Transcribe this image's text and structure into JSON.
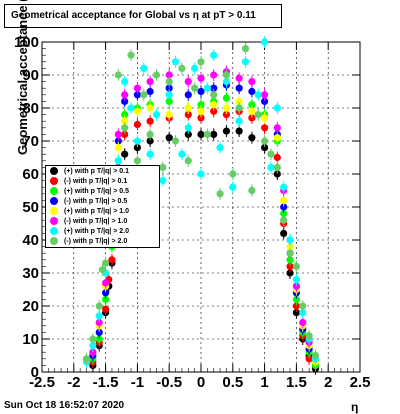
{
  "title": "Geometrical acceptance for Global vs  η at pT > 0.11",
  "timestamp": "Sun Oct 18 16:52:07 2020",
  "chart_data": {
    "type": "scatter",
    "xlabel": "η",
    "ylabel": "Geometrical acceptance (%)",
    "xlim": [
      -2.5,
      2.5
    ],
    "ylim": [
      0,
      100
    ],
    "x_ticks": [
      "-2.5",
      "-2",
      "-1.5",
      "-1",
      "-0.5",
      "0",
      "0.5",
      "1",
      "1.5",
      "2",
      "2.5"
    ],
    "y_ticks": [
      "0",
      "10",
      "20",
      "30",
      "40",
      "50",
      "60",
      "70",
      "80",
      "90",
      "100"
    ],
    "grid": true,
    "legend_position": "middle-left",
    "series": [
      {
        "name": "(+) with p T/|q| > 0.1",
        "color": "#000000",
        "points": [
          [
            -1.7,
            2
          ],
          [
            -1.6,
            8
          ],
          [
            -1.5,
            18
          ],
          [
            -1.45,
            26
          ],
          [
            -1.4,
            33
          ],
          [
            -1.35,
            45
          ],
          [
            -1.3,
            60
          ],
          [
            -1.2,
            66
          ],
          [
            -1.0,
            68
          ],
          [
            -0.8,
            70
          ],
          [
            -0.5,
            71
          ],
          [
            -0.2,
            72
          ],
          [
            0,
            72
          ],
          [
            0.2,
            72
          ],
          [
            0.4,
            73
          ],
          [
            0.6,
            73
          ],
          [
            0.8,
            71
          ],
          [
            1.0,
            68
          ],
          [
            1.2,
            60
          ],
          [
            1.3,
            42
          ],
          [
            1.4,
            30
          ],
          [
            1.5,
            18
          ],
          [
            1.6,
            10
          ],
          [
            1.7,
            5
          ],
          [
            1.8,
            1
          ]
        ]
      },
      {
        "name": "(-) with p T/|q| > 0.1",
        "color": "#ff0000",
        "points": [
          [
            -1.7,
            3
          ],
          [
            -1.6,
            9
          ],
          [
            -1.5,
            19
          ],
          [
            -1.45,
            28
          ],
          [
            -1.4,
            34
          ],
          [
            -1.35,
            50
          ],
          [
            -1.3,
            62
          ],
          [
            -1.2,
            72
          ],
          [
            -1.0,
            75
          ],
          [
            -0.8,
            76
          ],
          [
            -0.5,
            77
          ],
          [
            -0.2,
            78
          ],
          [
            0,
            77
          ],
          [
            0.2,
            79
          ],
          [
            0.4,
            78
          ],
          [
            0.6,
            79
          ],
          [
            0.8,
            77
          ],
          [
            1.0,
            74
          ],
          [
            1.2,
            65
          ],
          [
            1.3,
            45
          ],
          [
            1.4,
            32
          ],
          [
            1.5,
            20
          ],
          [
            1.6,
            11
          ],
          [
            1.7,
            4
          ],
          [
            1.8,
            2
          ]
        ]
      },
      {
        "name": "(+) with p T/|q| > 0.5",
        "color": "#00ff00",
        "points": [
          [
            -1.7,
            4
          ],
          [
            -1.6,
            10
          ],
          [
            -1.5,
            22
          ],
          [
            -1.4,
            38
          ],
          [
            -1.35,
            52
          ],
          [
            -1.3,
            64
          ],
          [
            -1.2,
            78
          ],
          [
            -1.0,
            80
          ],
          [
            -0.8,
            81
          ],
          [
            -0.5,
            82
          ],
          [
            -0.2,
            80
          ],
          [
            0,
            81
          ],
          [
            0.2,
            82
          ],
          [
            0.4,
            83
          ],
          [
            0.6,
            80
          ],
          [
            0.8,
            81
          ],
          [
            1.0,
            78
          ],
          [
            1.2,
            70
          ],
          [
            1.3,
            48
          ],
          [
            1.4,
            34
          ],
          [
            1.5,
            22
          ],
          [
            1.6,
            12
          ],
          [
            1.7,
            6
          ],
          [
            1.8,
            2
          ]
        ]
      },
      {
        "name": "(-) with p T/|q| > 0.5",
        "color": "#0000ff",
        "points": [
          [
            -1.7,
            5
          ],
          [
            -1.6,
            12
          ],
          [
            -1.5,
            24
          ],
          [
            -1.4,
            40
          ],
          [
            -1.35,
            55
          ],
          [
            -1.3,
            70
          ],
          [
            -1.2,
            82
          ],
          [
            -1.0,
            84
          ],
          [
            -0.8,
            85
          ],
          [
            -0.5,
            86
          ],
          [
            -0.2,
            84
          ],
          [
            0,
            85
          ],
          [
            0.2,
            86
          ],
          [
            0.4,
            87
          ],
          [
            0.6,
            86
          ],
          [
            0.8,
            85
          ],
          [
            1.0,
            82
          ],
          [
            1.2,
            72
          ],
          [
            1.3,
            50
          ],
          [
            1.4,
            36
          ],
          [
            1.5,
            24
          ],
          [
            1.6,
            13
          ],
          [
            1.7,
            7
          ],
          [
            1.8,
            3
          ]
        ]
      },
      {
        "name": "(+) with p T/|q| > 1.0",
        "color": "#ffff00",
        "points": [
          [
            -1.7,
            6
          ],
          [
            -1.6,
            14
          ],
          [
            -1.5,
            26
          ],
          [
            -1.4,
            42
          ],
          [
            -1.3,
            68
          ],
          [
            -1.2,
            76
          ],
          [
            -1.0,
            79
          ],
          [
            -0.8,
            80
          ],
          [
            -0.5,
            78
          ],
          [
            -0.2,
            80
          ],
          [
            0,
            79
          ],
          [
            0.2,
            81
          ],
          [
            0.4,
            80
          ],
          [
            0.6,
            82
          ],
          [
            0.8,
            79
          ],
          [
            1.0,
            77
          ],
          [
            1.2,
            71
          ],
          [
            1.3,
            52
          ],
          [
            1.4,
            38
          ],
          [
            1.5,
            25
          ],
          [
            1.6,
            14
          ],
          [
            1.7,
            8
          ],
          [
            1.8,
            3
          ]
        ]
      },
      {
        "name": "(-) with p T/|q| > 1.0",
        "color": "#ff00ff",
        "points": [
          [
            -1.7,
            6
          ],
          [
            -1.6,
            15
          ],
          [
            -1.5,
            27
          ],
          [
            -1.4,
            44
          ],
          [
            -1.3,
            72
          ],
          [
            -1.2,
            84
          ],
          [
            -1.0,
            86
          ],
          [
            -0.8,
            88
          ],
          [
            -0.5,
            90
          ],
          [
            -0.2,
            88
          ],
          [
            0,
            89
          ],
          [
            0.2,
            90
          ],
          [
            0.4,
            91
          ],
          [
            0.6,
            89
          ],
          [
            0.8,
            88
          ],
          [
            1.0,
            84
          ],
          [
            1.2,
            74
          ],
          [
            1.3,
            55
          ],
          [
            1.4,
            40
          ],
          [
            1.5,
            26
          ],
          [
            1.6,
            15
          ],
          [
            1.7,
            9
          ],
          [
            1.8,
            4
          ]
        ]
      },
      {
        "name": "(+) with p T/|q| > 2.0",
        "color": "#00ffff",
        "points": [
          [
            -1.8,
            3
          ],
          [
            -1.7,
            8
          ],
          [
            -1.6,
            17
          ],
          [
            -1.5,
            30
          ],
          [
            -1.4,
            46
          ],
          [
            -1.3,
            64
          ],
          [
            -1.2,
            88
          ],
          [
            -1.1,
            80
          ],
          [
            -1.0,
            70
          ],
          [
            -0.9,
            92
          ],
          [
            -0.8,
            66
          ],
          [
            -0.7,
            78
          ],
          [
            -0.6,
            58
          ],
          [
            -0.5,
            84
          ],
          [
            -0.4,
            94
          ],
          [
            -0.3,
            66
          ],
          [
            -0.2,
            74
          ],
          [
            -0.1,
            92
          ],
          [
            0,
            60
          ],
          [
            0.1,
            86
          ],
          [
            0.2,
            96
          ],
          [
            0.3,
            68
          ],
          [
            0.4,
            88
          ],
          [
            0.5,
            56
          ],
          [
            0.6,
            76
          ],
          [
            0.7,
            94
          ],
          [
            0.8,
            55
          ],
          [
            0.9,
            84
          ],
          [
            1.0,
            100
          ],
          [
            1.1,
            62
          ],
          [
            1.2,
            80
          ],
          [
            1.3,
            56
          ],
          [
            1.4,
            40
          ],
          [
            1.5,
            28
          ],
          [
            1.6,
            18
          ],
          [
            1.7,
            10
          ],
          [
            1.8,
            4
          ]
        ]
      },
      {
        "name": "(-) with p T/|q| > 2.0",
        "color": "#66cc66",
        "points": [
          [
            -1.8,
            4
          ],
          [
            -1.7,
            10
          ],
          [
            -1.6,
            20
          ],
          [
            -1.55,
            31
          ],
          [
            -1.5,
            33
          ],
          [
            -1.4,
            50
          ],
          [
            -1.3,
            90
          ],
          [
            -1.2,
            74
          ],
          [
            -1.1,
            96
          ],
          [
            -1.0,
            64
          ],
          [
            -0.9,
            84
          ],
          [
            -0.8,
            72
          ],
          [
            -0.7,
            90
          ],
          [
            -0.6,
            62
          ],
          [
            -0.5,
            88
          ],
          [
            -0.4,
            70
          ],
          [
            -0.3,
            92
          ],
          [
            -0.2,
            64
          ],
          [
            -0.1,
            86
          ],
          [
            0,
            94
          ],
          [
            0.1,
            72
          ],
          [
            0.2,
            84
          ],
          [
            0.3,
            54
          ],
          [
            0.4,
            90
          ],
          [
            0.5,
            60
          ],
          [
            0.6,
            80
          ],
          [
            0.7,
            98
          ],
          [
            0.8,
            55
          ],
          [
            0.9,
            78
          ],
          [
            1.0,
            70
          ],
          [
            1.1,
            66
          ],
          [
            1.2,
            62
          ],
          [
            1.3,
            46
          ],
          [
            1.4,
            36
          ],
          [
            1.5,
            32
          ],
          [
            1.6,
            20
          ],
          [
            1.7,
            11
          ],
          [
            1.8,
            5
          ]
        ]
      }
    ]
  }
}
